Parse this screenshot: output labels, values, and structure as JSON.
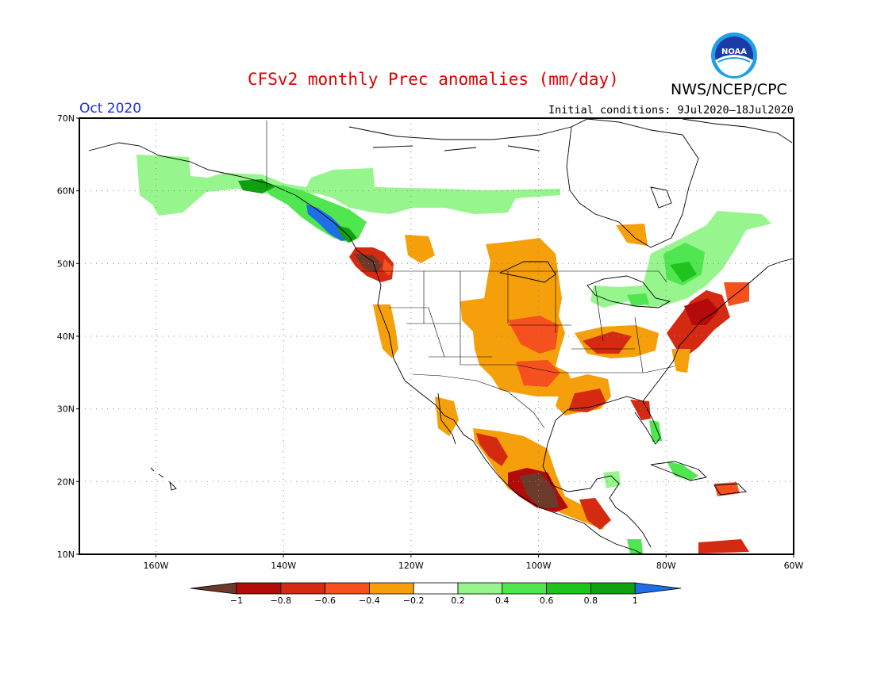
{
  "title": "CFSv2 monthly Prec anomalies (mm/day)",
  "agency": "NWS/NCEP/CPC",
  "month_label": "Oct 2020",
  "init_conditions": "Initial conditions: 9Jul2020–18Jul2020",
  "logo_text": "NOAA",
  "map": {
    "lat_labels": [
      "70N",
      "60N",
      "50N",
      "40N",
      "30N",
      "20N",
      "10N"
    ],
    "lon_labels": [
      "160W",
      "140W",
      "120W",
      "100W",
      "80W",
      "60W"
    ],
    "lat_range": [
      10,
      70
    ],
    "lon_range": [
      -172,
      -60
    ]
  },
  "colorbar": {
    "labels": [
      "−1",
      "−0.8",
      "−0.6",
      "−0.4",
      "−0.2",
      "0.2",
      "0.4",
      "0.6",
      "0.8",
      "1"
    ],
    "colors": [
      "#6b3a2a",
      "#b40a0a",
      "#d52a12",
      "#f5501e",
      "#f5a00a",
      "#ffffff",
      "#96f58c",
      "#50e650",
      "#1ec31e",
      "#0ea00e",
      "#1e6ee6"
    ]
  },
  "colors": {
    "brown": "#6b3a2a",
    "darkred": "#b40a0a",
    "red": "#d52a12",
    "orangered": "#f5501e",
    "orange": "#f5a00a",
    "lightgreen": "#96f58c",
    "green": "#50e650",
    "midgreen": "#1ec31e",
    "darkgreen": "#0ea00e",
    "blue": "#1e6ee6"
  }
}
